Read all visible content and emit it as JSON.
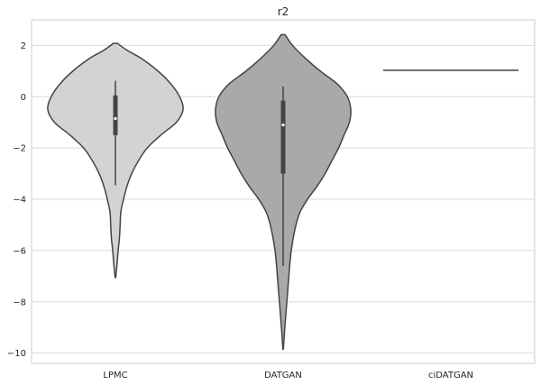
{
  "chart_data": {
    "type": "violin",
    "title": "r2",
    "xlabel": "",
    "ylabel": "",
    "categories": [
      "LPMC",
      "DATGAN",
      "ciDATGAN"
    ],
    "ylim": [
      -10.4,
      3.0
    ],
    "yticks": [
      2,
      0,
      -2,
      -4,
      -6,
      -8,
      -10
    ],
    "ytick_labels": [
      "2",
      "0",
      "−2",
      "−4",
      "−6",
      "−8",
      "−10"
    ],
    "grid": "horizontal",
    "colors": {
      "background": "#ffffff",
      "grid": "#d9d9d9",
      "axes_edge": "#cccccc",
      "outline": "#444444",
      "LPMC": "#d3d3d3",
      "DATGAN": "#a9a9a9"
    },
    "series": [
      {
        "category": "LPMC",
        "fill": "#d3d3d3",
        "min": -7.05,
        "max": 2.08,
        "whisker_low": -3.45,
        "whisker_high": 0.62,
        "q1": -1.5,
        "q3": 0.05,
        "median": -0.85,
        "profile": [
          [
            2.08,
            0.03
          ],
          [
            1.8,
            0.18
          ],
          [
            1.5,
            0.38
          ],
          [
            1.0,
            0.63
          ],
          [
            0.5,
            0.82
          ],
          [
            0.0,
            0.95
          ],
          [
            -0.5,
            1.0
          ],
          [
            -1.0,
            0.9
          ],
          [
            -1.5,
            0.67
          ],
          [
            -2.0,
            0.47
          ],
          [
            -2.5,
            0.34
          ],
          [
            -3.0,
            0.24
          ],
          [
            -3.5,
            0.17
          ],
          [
            -4.0,
            0.12
          ],
          [
            -4.5,
            0.08
          ],
          [
            -5.0,
            0.07
          ],
          [
            -5.5,
            0.06
          ],
          [
            -6.0,
            0.04
          ],
          [
            -6.5,
            0.025
          ],
          [
            -7.05,
            0.005
          ]
        ]
      },
      {
        "category": "DATGAN",
        "fill": "#a9a9a9",
        "min": -9.85,
        "max": 2.42,
        "whisker_low": -6.6,
        "whisker_high": 0.4,
        "q1": -3.0,
        "q3": -0.15,
        "median": -1.1,
        "profile": [
          [
            2.42,
            0.03
          ],
          [
            2.0,
            0.14
          ],
          [
            1.5,
            0.33
          ],
          [
            1.0,
            0.55
          ],
          [
            0.5,
            0.8
          ],
          [
            0.0,
            0.95
          ],
          [
            -0.5,
            1.0
          ],
          [
            -1.0,
            0.98
          ],
          [
            -1.5,
            0.9
          ],
          [
            -2.0,
            0.82
          ],
          [
            -2.5,
            0.72
          ],
          [
            -3.0,
            0.62
          ],
          [
            -3.5,
            0.5
          ],
          [
            -4.0,
            0.36
          ],
          [
            -4.5,
            0.25
          ],
          [
            -5.0,
            0.19
          ],
          [
            -5.5,
            0.15
          ],
          [
            -6.0,
            0.12
          ],
          [
            -6.5,
            0.1
          ],
          [
            -7.0,
            0.085
          ],
          [
            -7.5,
            0.07
          ],
          [
            -8.0,
            0.055
          ],
          [
            -8.5,
            0.04
          ],
          [
            -9.0,
            0.025
          ],
          [
            -9.5,
            0.012
          ],
          [
            -9.85,
            0.003
          ]
        ]
      },
      {
        "category": "ciDATGAN",
        "constant": 1.03,
        "note_type": "flat-line"
      }
    ]
  }
}
